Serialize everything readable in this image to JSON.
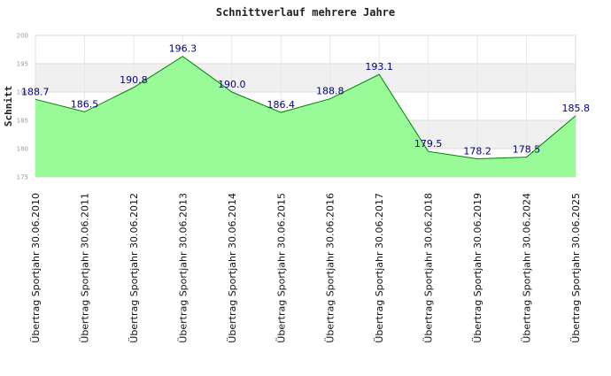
{
  "chart_data": {
    "type": "area",
    "title": "Schnittverlauf mehrere Jahre",
    "xlabel": "",
    "ylabel": "Schnitt",
    "ylim": [
      175,
      200
    ],
    "yticks": [
      175,
      180,
      185,
      190,
      195,
      200
    ],
    "grid": true,
    "fill_color": "#98fb98",
    "line_color": "#008000",
    "label_color": "#000080",
    "categories": [
      "Übertrag Sportjahr 30.06.2010",
      "Übertrag Sportjahr 30.06.2011",
      "Übertrag Sportjahr 30.06.2012",
      "Übertrag Sportjahr 30.06.2013",
      "Übertrag Sportjahr 30.06.2014",
      "Übertrag Sportjahr 30.06.2015",
      "Übertrag Sportjahr 30.06.2016",
      "Übertrag Sportjahr 30.06.2017",
      "Übertrag Sportjahr 30.06.2018",
      "Übertrag Sportjahr 30.06.2019",
      "Übertrag Sportjahr 30.06.2024",
      "Übertrag Sportjahr 30.06.2025"
    ],
    "values": [
      188.7,
      186.5,
      190.8,
      196.3,
      190.0,
      186.4,
      188.8,
      193.1,
      179.5,
      178.2,
      178.5,
      185.8
    ],
    "value_labels": [
      "188.7",
      "186.5",
      "190.8",
      "196.3",
      "190.0",
      "186.4",
      "188.8",
      "193.1",
      "179.5",
      "178.2",
      "178.5",
      "185.8"
    ]
  }
}
